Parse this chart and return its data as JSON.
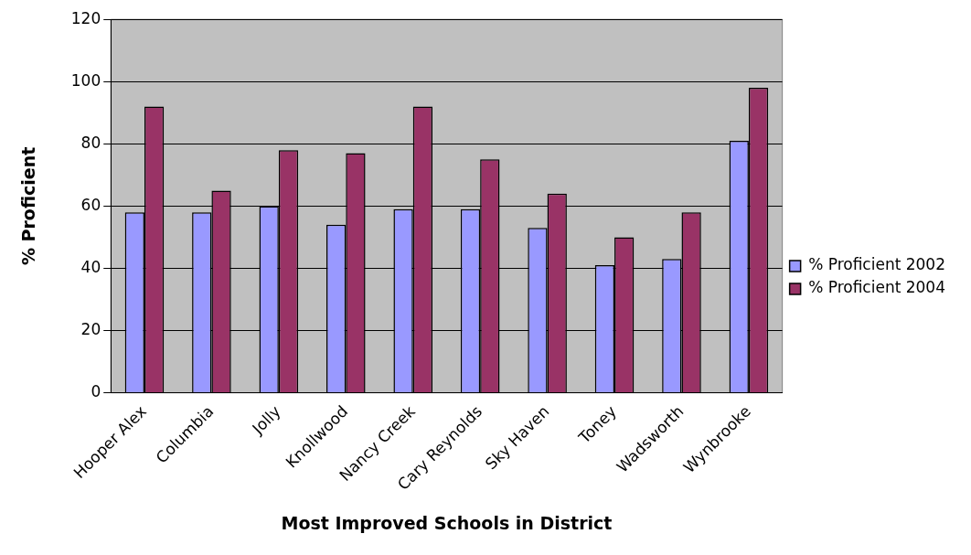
{
  "chart_data": {
    "type": "bar",
    "xlabel": "Most Improved Schools in District",
    "ylabel": "% Proficient",
    "categories": [
      "Hooper Alex",
      "Columbia",
      "Jolly",
      "Knollwood",
      "Nancy Creek",
      "Cary Reynolds",
      "Sky Haven",
      "Toney",
      "Wadsworth",
      "Wynbrooke"
    ],
    "series": [
      {
        "name": "% Proficient 2002",
        "color": "#9999ff",
        "values": [
          58,
          58,
          60,
          54,
          59,
          59,
          53,
          41,
          43,
          81
        ]
      },
      {
        "name": "% Proficient 2004",
        "color": "#993366",
        "values": [
          92,
          65,
          78,
          77,
          92,
          75,
          64,
          50,
          58,
          98
        ]
      }
    ],
    "ylim": [
      0,
      120
    ],
    "yticks": [
      0,
      20,
      40,
      60,
      80,
      100,
      120
    ],
    "grid": "y",
    "legend": "right"
  }
}
